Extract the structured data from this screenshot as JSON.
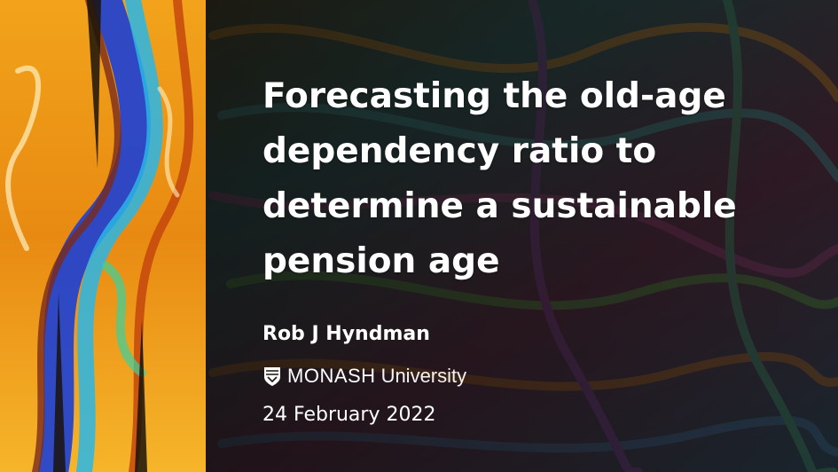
{
  "slide": {
    "title": "Forecasting the old-age dependency ratio to determine a sustainable pension age",
    "author": "Rob J Hyndman",
    "affiliation": {
      "name_part1": "MONASH",
      "name_part2": "University",
      "logo_icon": "monash-crest-icon"
    },
    "date": "24 February 2022"
  }
}
